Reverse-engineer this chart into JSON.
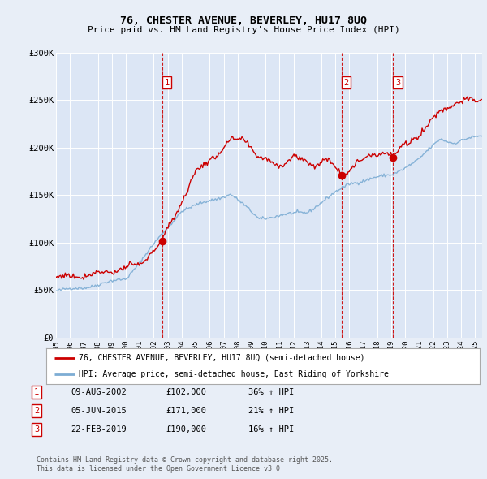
{
  "title_line1": "76, CHESTER AVENUE, BEVERLEY, HU17 8UQ",
  "title_line2": "Price paid vs. HM Land Registry's House Price Index (HPI)",
  "background_color": "#e8eef7",
  "plot_bg_color": "#dce6f5",
  "legend_label_red": "76, CHESTER AVENUE, BEVERLEY, HU17 8UQ (semi-detached house)",
  "legend_label_blue": "HPI: Average price, semi-detached house, East Riding of Yorkshire",
  "transactions": [
    {
      "num": 1,
      "date": "09-AUG-2002",
      "x": 2002.6,
      "price": 102000,
      "pct": "36%",
      "dir": "↑"
    },
    {
      "num": 2,
      "date": "05-JUN-2015",
      "x": 2015.45,
      "price": 171000,
      "pct": "21%",
      "dir": "↑"
    },
    {
      "num": 3,
      "date": "22-FEB-2019",
      "x": 2019.13,
      "price": 190000,
      "pct": "16%",
      "dir": "↑"
    }
  ],
  "footer_line1": "Contains HM Land Registry data © Crown copyright and database right 2025.",
  "footer_line2": "This data is licensed under the Open Government Licence v3.0.",
  "xmin": 1995,
  "xmax": 2025.5,
  "ymin": 0,
  "ymax": 300000,
  "yticks": [
    0,
    50000,
    100000,
    150000,
    200000,
    250000,
    300000
  ],
  "ytick_labels": [
    "£0",
    "£50K",
    "£100K",
    "£150K",
    "£200K",
    "£250K",
    "£300K"
  ],
  "red_color": "#cc0000",
  "blue_color": "#7dadd4",
  "vline_color": "#cc0000",
  "grid_color": "#ffffff"
}
